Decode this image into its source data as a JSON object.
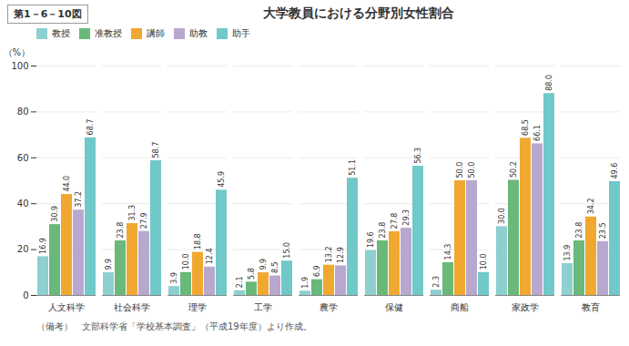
{
  "chart_data": {
    "type": "bar",
    "title": "大学教員における分野別女性割合",
    "figure_label": "第1－6－10図",
    "ylabel": "（%）",
    "footnote": "（備考）　文部科学省「学校基本調査」（平成19年度）より作成。",
    "categories": [
      "人文科学",
      "社会科学",
      "理学",
      "工学",
      "農学",
      "保健",
      "商船",
      "家政学",
      "教育"
    ],
    "series": [
      {
        "name": "教授",
        "color": "#8ecfcf",
        "values": [
          16.9,
          9.9,
          3.9,
          2.1,
          1.9,
          19.6,
          2.3,
          30.0,
          13.9
        ],
        "value_labels": [
          "16.9",
          "9.9",
          "3.9",
          "2.1",
          "1.9",
          "19.6",
          "2.3",
          "30.0",
          "13.9"
        ]
      },
      {
        "name": "准教授",
        "color": "#6ab87a",
        "values": [
          30.9,
          23.8,
          10.0,
          5.8,
          6.9,
          23.8,
          14.3,
          50.2,
          23.8
        ],
        "value_labels": [
          "30.9",
          "23.8",
          "10.0",
          "5.8",
          "6.9",
          "23.8",
          "14.3",
          "50.2",
          "23.8"
        ]
      },
      {
        "name": "講師",
        "color": "#f0a830",
        "values": [
          44.0,
          31.3,
          18.8,
          9.9,
          13.2,
          27.8,
          50.0,
          68.5,
          34.2
        ],
        "value_labels": [
          "44.0",
          "31.3",
          "18.8",
          "9.9",
          "13.2",
          "27.8",
          "50.0",
          "68.5",
          "34.2"
        ]
      },
      {
        "name": "助教",
        "color": "#b8a8d0",
        "values": [
          37.2,
          27.9,
          12.4,
          8.5,
          12.9,
          29.3,
          50.0,
          66.1,
          23.5
        ],
        "value_labels": [
          "37.2",
          "27.9",
          "12.4",
          "8.5",
          "12.9",
          "29.3",
          "50.0",
          "66.1",
          "23.5"
        ]
      },
      {
        "name": "助手",
        "color": "#70c8c8",
        "values": [
          68.7,
          58.7,
          45.9,
          15.0,
          51.1,
          56.3,
          10.0,
          88.0,
          49.6
        ],
        "value_labels": [
          "68.7",
          "58.7",
          "45.9",
          "15.0",
          "51.1",
          "56.3",
          "10.0",
          "88.0",
          "49.6"
        ]
      }
    ],
    "ylim": [
      0,
      100
    ],
    "yticks": [
      0,
      20,
      40,
      60,
      80,
      100
    ],
    "grid": true,
    "legend": "upper left",
    "data_labels": true
  }
}
